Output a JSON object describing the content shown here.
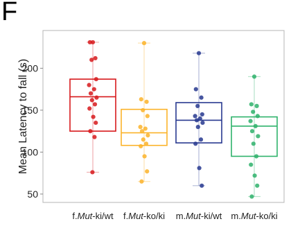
{
  "panel_label": "F",
  "chart_data": {
    "type": "box",
    "ylabel": "Mean Latency to fall (s)",
    "xlabel": "",
    "ylim": [
      40,
      245
    ],
    "yticks": [
      50,
      100,
      150,
      200
    ],
    "grid": false,
    "categories": [
      {
        "prefix": "f.",
        "italic": "Mut",
        "suffix": "-ki/wt"
      },
      {
        "prefix": "f.",
        "italic": "Mut",
        "suffix": "-ko/ki"
      },
      {
        "prefix": "m.",
        "italic": "Mut",
        "suffix": "-ki/wt"
      },
      {
        "prefix": "m.",
        "italic": "Mut",
        "suffix": "-ko/ki"
      }
    ],
    "series": [
      {
        "color": "#d7191c",
        "whisker_low": 76,
        "q1": 125,
        "median": 166,
        "q3": 187,
        "whisker_high": 231,
        "points": [
          231,
          231,
          212,
          210,
          187,
          180,
          175,
          170,
          165,
          162,
          157,
          152,
          142,
          135,
          125,
          118,
          76
        ]
      },
      {
        "color": "#fbb329",
        "whisker_low": 65,
        "q1": 108,
        "median": 123,
        "q3": 151,
        "whisker_high": 230,
        "points": [
          230,
          163,
          160,
          150,
          143,
          130,
          128,
          125,
          120,
          115,
          110,
          107,
          95,
          77,
          65
        ]
      },
      {
        "color": "#27388f",
        "whisker_low": 60,
        "q1": 111,
        "median": 138,
        "q3": 159,
        "whisker_high": 218,
        "points": [
          218,
          175,
          165,
          155,
          145,
          143,
          140,
          138,
          135,
          130,
          115,
          110,
          81,
          60
        ]
      },
      {
        "color": "#2eb26b",
        "whisker_low": 47,
        "q1": 95,
        "median": 131,
        "q3": 142,
        "whisker_high": 190,
        "points": [
          190,
          157,
          155,
          148,
          143,
          137,
          131,
          125,
          119,
          110,
          95,
          85,
          72,
          60,
          47
        ]
      }
    ]
  }
}
